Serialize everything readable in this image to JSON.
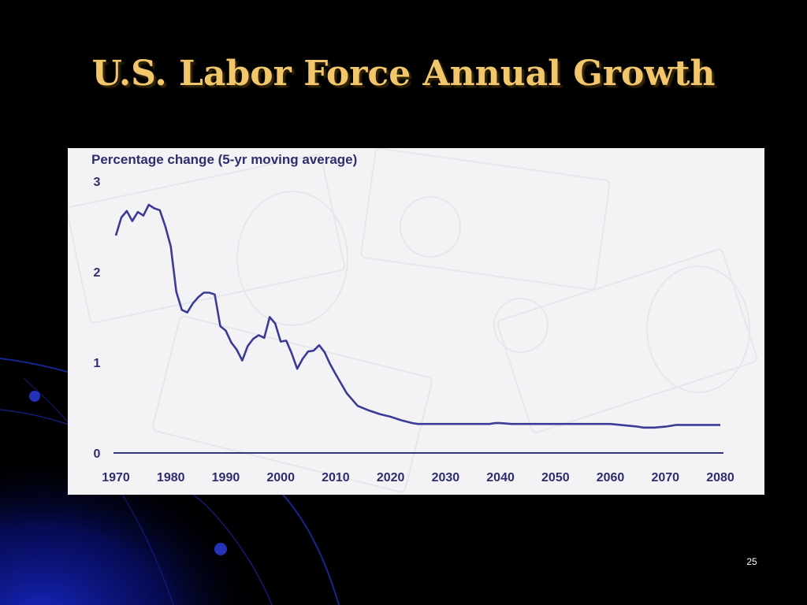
{
  "slide": {
    "title": "U.S. Labor Force Annual Growth",
    "page_number": "25",
    "colors": {
      "background": "#000000",
      "title": "#f2c66a",
      "accent": "#0a1aa0"
    }
  },
  "chart_data": {
    "type": "line",
    "title": "",
    "ylabel": "Percentage change (5-yr moving average)",
    "xlabel": "",
    "xlim": [
      1970,
      2080
    ],
    "ylim": [
      0,
      3
    ],
    "x_ticks": [
      "1970",
      "1980",
      "1990",
      "2000",
      "2010",
      "2020",
      "2030",
      "2040",
      "2050",
      "2060",
      "2070",
      "2080"
    ],
    "y_ticks": [
      "0",
      "1",
      "2",
      "3"
    ],
    "grid": false,
    "legend": "none",
    "line_color": "#3b3b96",
    "series": [
      {
        "name": "",
        "x": [
          1970,
          1971,
          1972,
          1973,
          1974,
          1975,
          1976,
          1977,
          1978,
          1979,
          1980,
          1981,
          1982,
          1983,
          1984,
          1985,
          1986,
          1987,
          1988,
          1989,
          1990,
          1991,
          1992,
          1993,
          1994,
          1995,
          1996,
          1997,
          1998,
          1999,
          2000,
          2001,
          2002,
          2003,
          2004,
          2005,
          2006,
          2007,
          2008,
          2009,
          2010,
          2012,
          2014,
          2016,
          2018,
          2020,
          2022,
          2024,
          2025,
          2030,
          2038,
          2039,
          2040,
          2042,
          2050,
          2060,
          2065,
          2066,
          2068,
          2070,
          2072,
          2080
        ],
        "y": [
          2.4,
          2.6,
          2.67,
          2.56,
          2.66,
          2.62,
          2.74,
          2.7,
          2.68,
          2.5,
          2.28,
          1.78,
          1.58,
          1.55,
          1.65,
          1.72,
          1.77,
          1.77,
          1.75,
          1.4,
          1.35,
          1.22,
          1.14,
          1.02,
          1.18,
          1.26,
          1.3,
          1.27,
          1.5,
          1.43,
          1.23,
          1.24,
          1.1,
          0.93,
          1.04,
          1.12,
          1.13,
          1.19,
          1.11,
          0.98,
          0.87,
          0.66,
          0.52,
          0.47,
          0.43,
          0.4,
          0.36,
          0.33,
          0.32,
          0.32,
          0.32,
          0.33,
          0.33,
          0.32,
          0.32,
          0.32,
          0.29,
          0.28,
          0.28,
          0.29,
          0.31,
          0.31
        ]
      }
    ]
  }
}
